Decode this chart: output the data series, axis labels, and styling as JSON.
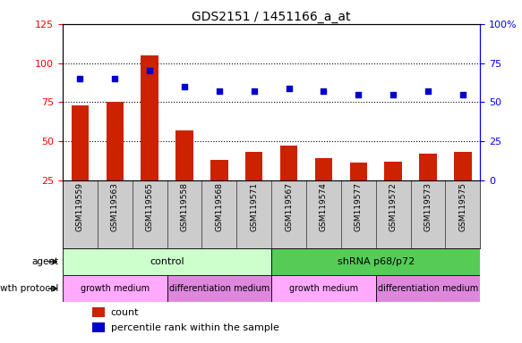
{
  "title": "GDS2151 / 1451166_a_at",
  "samples": [
    "GSM119559",
    "GSM119563",
    "GSM119565",
    "GSM119558",
    "GSM119568",
    "GSM119571",
    "GSM119567",
    "GSM119574",
    "GSM119577",
    "GSM119572",
    "GSM119573",
    "GSM119575"
  ],
  "counts": [
    73,
    75,
    105,
    57,
    38,
    43,
    47,
    39,
    36,
    37,
    42,
    43
  ],
  "percentile_ranks": [
    65,
    65,
    70,
    60,
    57,
    57,
    59,
    57,
    55,
    55,
    57,
    55
  ],
  "left_ylim": [
    25,
    125
  ],
  "left_yticks": [
    25,
    50,
    75,
    100,
    125
  ],
  "right_ylim": [
    0,
    100
  ],
  "right_yticks": [
    0,
    25,
    50,
    75,
    100
  ],
  "bar_color": "#cc2200",
  "dot_color": "#0000cc",
  "bar_width": 0.5,
  "agent_groups": [
    {
      "label": "control",
      "start": 0,
      "end": 6,
      "color": "#ccffcc"
    },
    {
      "label": "shRNA p68/p72",
      "start": 6,
      "end": 12,
      "color": "#55cc55"
    }
  ],
  "growth_groups": [
    {
      "label": "growth medium",
      "start": 0,
      "end": 3,
      "color": "#ffaaff"
    },
    {
      "label": "differentiation medium",
      "start": 3,
      "end": 6,
      "color": "#dd88dd"
    },
    {
      "label": "growth medium",
      "start": 6,
      "end": 9,
      "color": "#ffaaff"
    },
    {
      "label": "differentiation medium",
      "start": 9,
      "end": 12,
      "color": "#dd88dd"
    }
  ],
  "legend_count_color": "#cc2200",
  "legend_dot_color": "#0000cc",
  "bg_color": "#cccccc"
}
